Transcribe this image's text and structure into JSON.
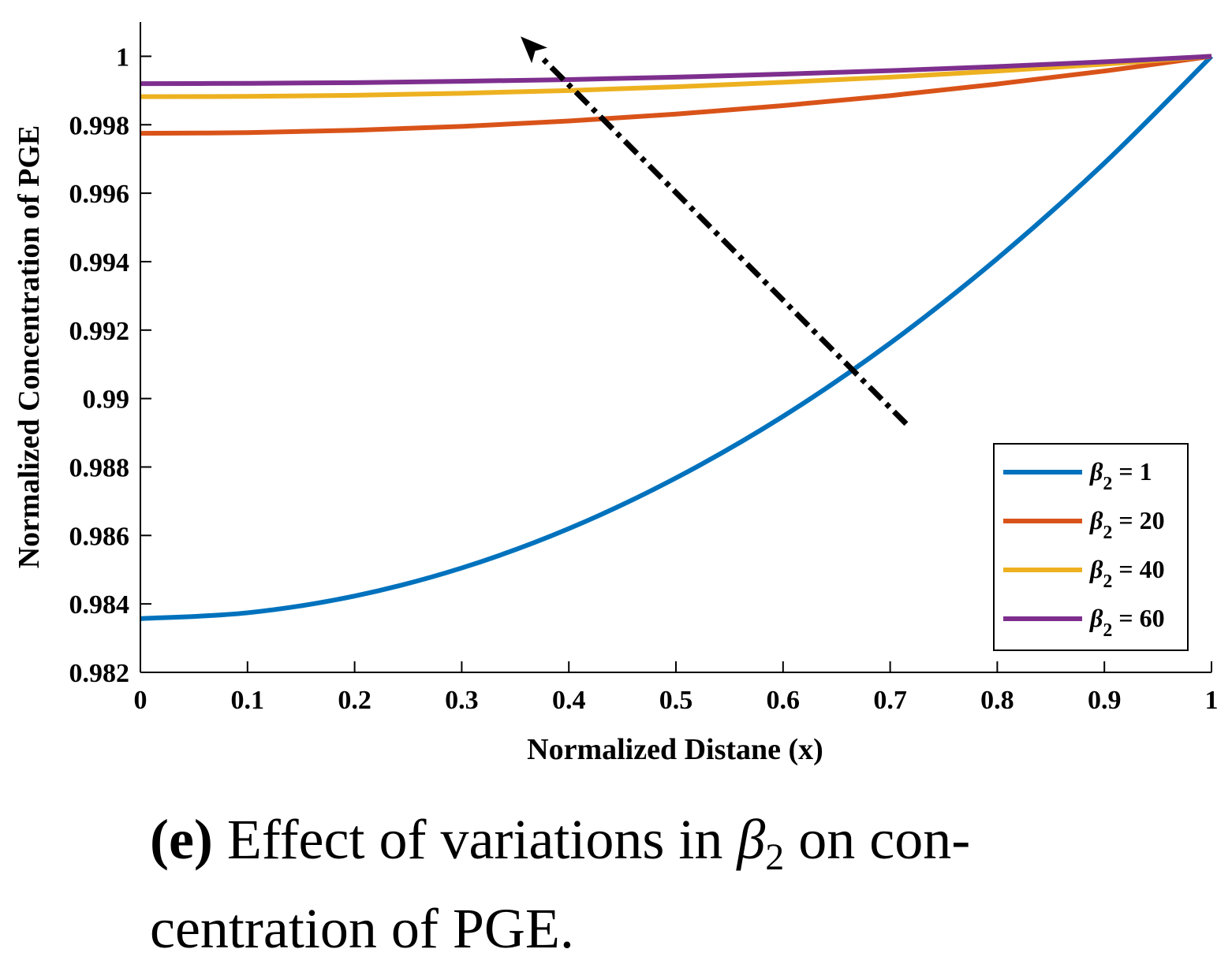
{
  "chart_data": {
    "type": "line",
    "xlabel": "Normalized Distane (x)",
    "ylabel": "Normalized Concentration of PGE",
    "xlim": [
      0,
      1
    ],
    "ylim": [
      0.982,
      1.001
    ],
    "x_ticks": [
      "0",
      "0.1",
      "0.2",
      "0.3",
      "0.4",
      "0.5",
      "0.6",
      "0.7",
      "0.8",
      "0.9",
      "1"
    ],
    "y_ticks": [
      "0.982",
      "0.984",
      "0.986",
      "0.988",
      "0.99",
      "0.992",
      "0.994",
      "0.996",
      "0.998",
      "1"
    ],
    "x": [
      0,
      0.1,
      0.2,
      0.3,
      0.4,
      0.5,
      0.6,
      0.7,
      0.8,
      0.9,
      1.0
    ],
    "series": [
      {
        "name": "β2 = 1",
        "symbol": "β",
        "subscript": "2",
        "value_text": " = 1",
        "color": "#0072BD",
        "values": [
          0.98357,
          0.98374,
          0.98423,
          0.98505,
          0.9862,
          0.98768,
          0.98948,
          0.99162,
          0.99409,
          0.99688,
          1.0
        ]
      },
      {
        "name": "β2 = 20",
        "symbol": "β",
        "subscript": "2",
        "value_text": " = 20",
        "color": "#D95319",
        "values": [
          0.99775,
          0.99777,
          0.99784,
          0.99795,
          0.99811,
          0.99831,
          0.99856,
          0.99885,
          0.99919,
          0.99957,
          1.0
        ]
      },
      {
        "name": "β2 = 40",
        "symbol": "β",
        "subscript": "2",
        "value_text": " = 40",
        "color": "#EDB120",
        "values": [
          0.99882,
          0.99883,
          0.99886,
          0.99892,
          0.999,
          0.99911,
          0.99924,
          0.99939,
          0.99957,
          0.99977,
          1.0
        ]
      },
      {
        "name": "β2 = 60",
        "symbol": "β",
        "subscript": "2",
        "value_text": " = 60",
        "color": "#7E2F8E",
        "values": [
          0.9992,
          0.99921,
          0.99923,
          0.99927,
          0.99932,
          0.99939,
          0.99948,
          0.99958,
          0.9997,
          0.99984,
          1.0
        ]
      }
    ],
    "annotation": {
      "type": "dash-dot arrow",
      "from": [
        0.715,
        0.98926
      ],
      "to": [
        0.355,
        1.00058
      ],
      "color": "#000000"
    },
    "legend_position": "bottom-right"
  },
  "caption": {
    "label": "(e)",
    "text_before": "Effect of variations in ",
    "symbol": "β",
    "subscript": "2",
    "text_after": " on con-centration of PGE."
  }
}
